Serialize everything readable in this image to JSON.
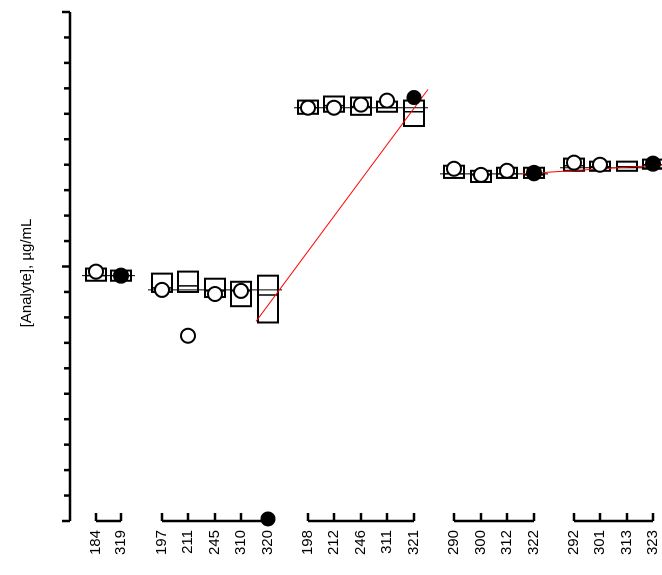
{
  "chart_data": {
    "type": "box",
    "ylabel": "[Analyte], µg/mL",
    "y_tick_labels_shown": false,
    "ylim": [
      0,
      500
    ],
    "y_ticks": [
      0,
      25,
      50,
      75,
      100,
      125,
      150,
      175,
      200,
      225,
      250,
      275,
      300,
      325,
      350,
      375,
      400,
      425,
      450,
      475,
      500
    ],
    "y_major_ticks": [
      0,
      250,
      500
    ],
    "groups": [
      {
        "categories": [
          "184",
          "319"
        ],
        "mean": 241,
        "boxes": [
          {
            "category": "184",
            "low": 236,
            "high": 248,
            "median": 241
          },
          {
            "category": "319",
            "low": 236,
            "high": 246,
            "median": 241
          }
        ]
      },
      {
        "categories": [
          "197",
          "211",
          "245",
          "310",
          "320"
        ],
        "mean": 227,
        "boxes": [
          {
            "category": "197",
            "low": 225,
            "high": 243,
            "median": 229
          },
          {
            "category": "211",
            "low": 225,
            "high": 245,
            "median": 231
          },
          {
            "category": "245",
            "low": 220,
            "high": 238,
            "median": 226
          },
          {
            "category": "310",
            "low": 211,
            "high": 235,
            "median": 226
          },
          {
            "category": "320",
            "low": 195,
            "high": 241,
            "median": 222
          }
        ]
      },
      {
        "categories": [
          "198",
          "212",
          "246",
          "311",
          "321"
        ],
        "mean": 406,
        "boxes": [
          {
            "category": "198",
            "low": 400,
            "high": 413,
            "median": 406
          },
          {
            "category": "212",
            "low": 402,
            "high": 417,
            "median": 408
          },
          {
            "category": "246",
            "low": 399,
            "high": 416,
            "median": 407
          },
          {
            "category": "311",
            "low": 402,
            "high": 412,
            "median": 406
          },
          {
            "category": "321",
            "low": 388,
            "high": 413,
            "median": 402
          }
        ]
      },
      {
        "categories": [
          "290",
          "300",
          "312",
          "322"
        ],
        "mean": 341,
        "boxes": [
          {
            "category": "290",
            "low": 337,
            "high": 349,
            "median": 341
          },
          {
            "category": "300",
            "low": 333,
            "high": 344,
            "median": 340
          },
          {
            "category": "312",
            "low": 337,
            "high": 347,
            "median": 341
          },
          {
            "category": "322",
            "low": 337,
            "high": 347,
            "median": 340
          }
        ]
      },
      {
        "categories": [
          "292",
          "301",
          "313",
          "323"
        ],
        "mean": 347,
        "boxes": [
          {
            "category": "292",
            "low": 344,
            "high": 356,
            "median": 349
          },
          {
            "category": "301",
            "low": 344,
            "high": 353,
            "median": 348
          },
          {
            "category": "313",
            "low": 344,
            "high": 353,
            "median": 348
          },
          {
            "category": "323",
            "low": 346,
            "high": 355,
            "median": 350
          }
        ]
      }
    ],
    "points": [
      {
        "category": "184",
        "y": 245,
        "style": "open"
      },
      {
        "category": "319",
        "y": 241,
        "style": "open"
      },
      {
        "category": "319",
        "y": 241,
        "style": "filled"
      },
      {
        "category": "197",
        "y": 227,
        "style": "open"
      },
      {
        "category": "211",
        "y": 182,
        "style": "open"
      },
      {
        "category": "245",
        "y": 223,
        "style": "open"
      },
      {
        "category": "310",
        "y": 226,
        "style": "open"
      },
      {
        "category": "320",
        "y": 2,
        "style": "filled"
      },
      {
        "category": "198",
        "y": 406,
        "style": "open"
      },
      {
        "category": "212",
        "y": 406,
        "style": "open"
      },
      {
        "category": "246",
        "y": 409,
        "style": "open"
      },
      {
        "category": "311",
        "y": 413,
        "style": "open"
      },
      {
        "category": "321",
        "y": 416,
        "style": "filled"
      },
      {
        "category": "290",
        "y": 346,
        "style": "open"
      },
      {
        "category": "300",
        "y": 340,
        "style": "open"
      },
      {
        "category": "312",
        "y": 344,
        "style": "open"
      },
      {
        "category": "322",
        "y": 342,
        "style": "open"
      },
      {
        "category": "322",
        "y": 341,
        "style": "filled"
      },
      {
        "category": "292",
        "y": 352,
        "style": "open"
      },
      {
        "category": "301",
        "y": 350,
        "style": "open"
      },
      {
        "category": "323",
        "y": 351,
        "style": "open"
      },
      {
        "category": "323",
        "y": 351,
        "style": "filled"
      }
    ],
    "trend_lines": [
      {
        "from": {
          "category": "320",
          "y": 196
        },
        "to": {
          "category": "321",
          "y": 424
        }
      },
      {
        "from": {
          "category": "322",
          "y": 341
        },
        "to": {
          "category": "323",
          "y": 350
        }
      }
    ],
    "colors": {
      "trend_line": "#ff0000",
      "boxes": "#000000",
      "background": "#ffffff"
    }
  }
}
